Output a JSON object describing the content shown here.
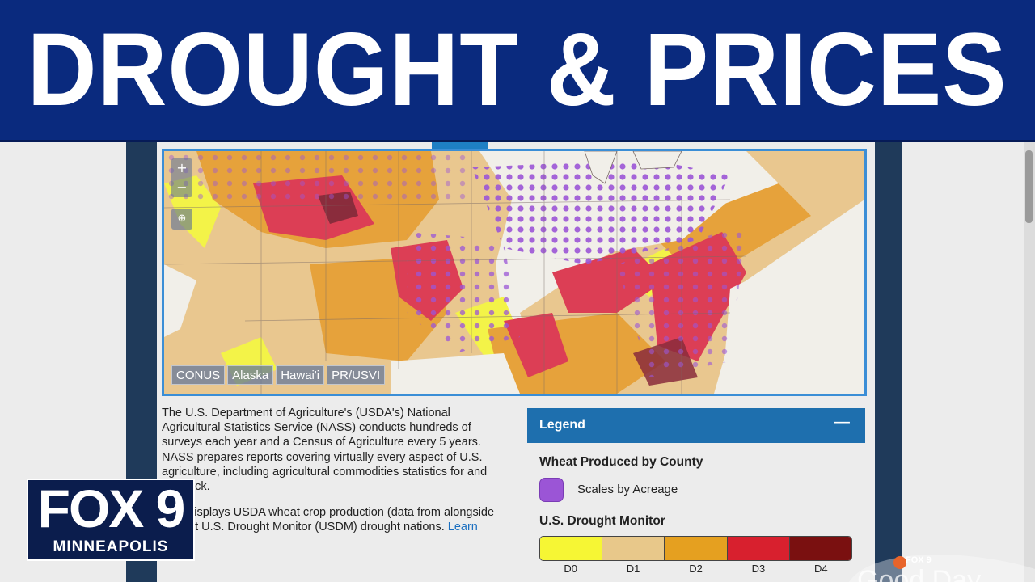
{
  "banner": {
    "headline": "DROUGHT & PRICES"
  },
  "map": {
    "zoom_in": "+",
    "zoom_out": "−",
    "locate_glyph": "⊕",
    "region_tabs": [
      "CONUS",
      "Alaska",
      "Hawai'i",
      "PR/USVI"
    ]
  },
  "description": {
    "paragraph1": "The U.S. Department of Agriculture's (USDA's) National Agricultural Statistics Service (NASS) conducts hundreds of surveys each year and a Census of Agriculture every 5 years. NASS prepares reports covering virtually every aspect of U.S. agriculture, including agricultural commodities statistics for and livestock.",
    "paragraph2": "map displays USDA wheat crop production (data from alongside current U.S. Drought Monitor (USDM) drought nations.",
    "link": "Learn more",
    "period": "."
  },
  "legend": {
    "title": "Legend",
    "collapse": "—",
    "wheat_heading": "Wheat Produced by County",
    "wheat_swatch_color": "#9b55d6",
    "wheat_label": "Scales by Acreage",
    "drought_heading": "U.S. Drought Monitor",
    "drought_categories": [
      {
        "label": "D0",
        "color": "#f6f634"
      },
      {
        "label": "D1",
        "color": "#e8c88a"
      },
      {
        "label": "D2",
        "color": "#e5a020"
      },
      {
        "label": "D3",
        "color": "#d8202e"
      },
      {
        "label": "D4",
        "color": "#7a1010"
      }
    ]
  },
  "station": {
    "name": "FOX 9",
    "city": "MINNEAPOLIS",
    "show_small": "FOX 9",
    "show_word": "Good Day"
  },
  "colors": {
    "banner": "#0a2a7e",
    "legend_header": "#1e6fae",
    "link": "#1a6fc0",
    "map_border": "#3b8ed6"
  }
}
